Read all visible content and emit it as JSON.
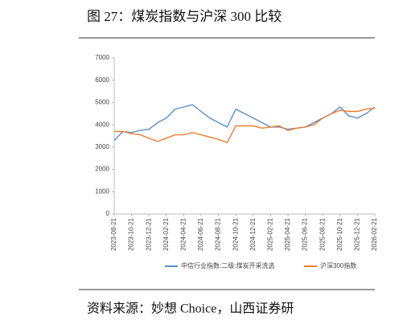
{
  "chart_data": {
    "type": "line",
    "title": "图 27：煤炭指数与沪深 300 比较",
    "source": "资料来源：妙想 Choice，山西证券研",
    "categories": [
      "2023-08-21",
      null,
      "2023-10-21",
      null,
      "2023-12-21",
      null,
      "2024-02-21",
      null,
      "2024-04-21",
      null,
      "2024-06-21",
      null,
      "2024-08-21",
      null,
      "2024-10-21",
      null,
      "2024-12-21",
      null,
      "2025-02-21",
      null,
      "2025-04-21",
      null,
      "2025-06-21",
      null,
      "2025-08-21",
      null,
      "2025-10-21",
      null,
      "2025-12-21",
      null,
      "2026-02-21"
    ],
    "series": [
      {
        "name": "中信行业指数:二级:煤炭开采洗选",
        "color": "#5b8fd0",
        "values": [
          3300,
          3700,
          3650,
          3750,
          3800,
          4100,
          4300,
          4700,
          4800,
          4900,
          4600,
          4300,
          4100,
          3900,
          4700,
          4500,
          4300,
          4100,
          3900,
          3900,
          3800,
          3850,
          3900,
          4100,
          4300,
          4500,
          4800,
          4400,
          4300,
          4500,
          4800
        ]
      },
      {
        "name": "沪深300指数",
        "color": "#ed7d31",
        "values": [
          3700,
          3700,
          3600,
          3550,
          3400,
          3250,
          3400,
          3550,
          3550,
          3650,
          3550,
          3450,
          3350,
          3200,
          3950,
          3950,
          3950,
          3850,
          3900,
          3950,
          3750,
          3850,
          3900,
          4000,
          4300,
          4500,
          4650,
          4600,
          4600,
          4700,
          4750
        ]
      }
    ],
    "ylim": [
      0,
      7000
    ],
    "yticks": [
      0,
      1000,
      2000,
      3000,
      4000,
      5000,
      6000,
      7000
    ],
    "grid": false,
    "legend": "bottom"
  }
}
